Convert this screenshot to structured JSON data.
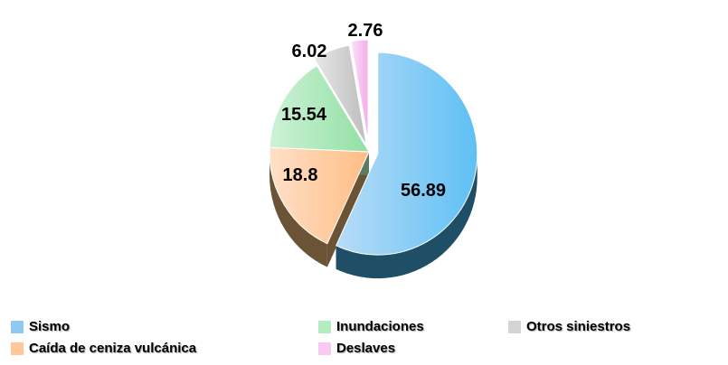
{
  "chart_data": {
    "type": "pie",
    "title": "",
    "categories": [
      "Sismo",
      "Caída de ceniza vulcánica",
      "Inundaciones",
      "Otros siniestros",
      "Deslaves"
    ],
    "values": [
      56.89,
      18.8,
      15.54,
      6.02,
      2.76
    ],
    "value_labels": [
      "56.89",
      "18.8",
      "15.54",
      "6.02",
      "2.76"
    ],
    "colors": [
      "#8ec9f0",
      "#ffc79a",
      "#b3ecc0",
      "#d4d4d4",
      "#f9c8f3"
    ],
    "exploded": true,
    "three_d": true,
    "legend_position": "bottom"
  }
}
